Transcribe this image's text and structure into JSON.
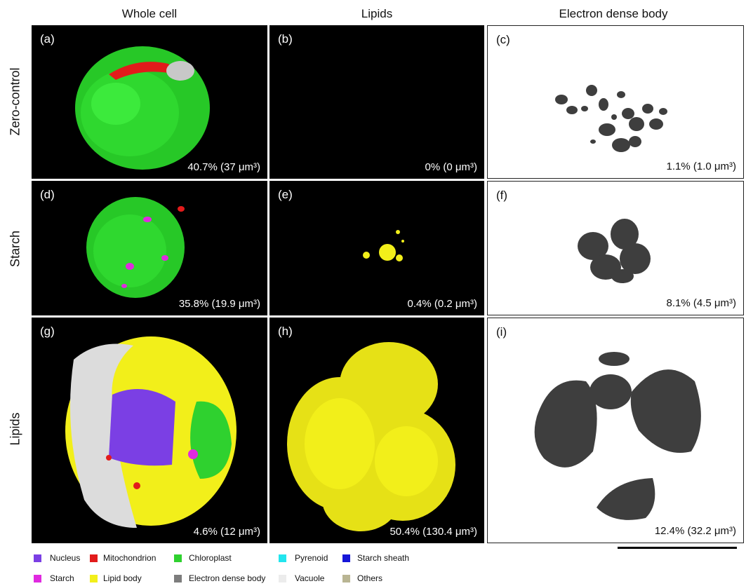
{
  "columns": [
    "Whole cell",
    "Lipids",
    "Electron dense body"
  ],
  "rows": [
    "Zero-control",
    "Starch",
    "Lipids"
  ],
  "panels": [
    {
      "letter": "(a)",
      "pct": "40.7% (37 μm³)"
    },
    {
      "letter": "(b)",
      "pct": "0% (0 μm³)"
    },
    {
      "letter": "(c)",
      "pct": "1.1% (1.0 μm³)"
    },
    {
      "letter": "(d)",
      "pct": "35.8% (19.9 μm³)"
    },
    {
      "letter": "(e)",
      "pct": "0.4% (0.2 μm³)"
    },
    {
      "letter": "(f)",
      "pct": "8.1% (4.5 μm³)"
    },
    {
      "letter": "(g)",
      "pct": "4.6% (12 μm³)"
    },
    {
      "letter": "(h)",
      "pct": "50.4% (130.4 μm³)"
    },
    {
      "letter": "(i)",
      "pct": "12.4% (32.2 μm³)"
    }
  ],
  "legend": [
    {
      "label": "Nucleus",
      "color": "#7b3fe4"
    },
    {
      "label": "Mitochondrion",
      "color": "#e21b1b"
    },
    {
      "label": "Chloroplast",
      "color": "#2fd12f"
    },
    {
      "label": "Pyrenoid",
      "color": "#22e5ee"
    },
    {
      "label": "Starch sheath",
      "color": "#1616d8"
    },
    {
      "label": "Starch",
      "color": "#e02ae0"
    },
    {
      "label": "Lipid body",
      "color": "#f2ef1a"
    },
    {
      "label": "Electron dense body",
      "color": "#7d7d7d"
    },
    {
      "label": "Vacuole",
      "color": "#ececec"
    },
    {
      "label": "Others",
      "color": "#b9b593"
    }
  ]
}
